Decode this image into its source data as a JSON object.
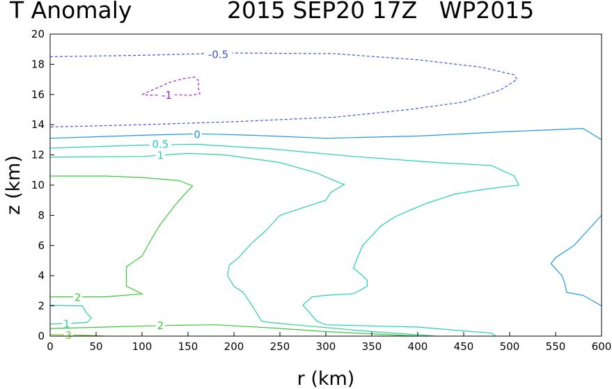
{
  "header": {
    "variable": "T Anomaly",
    "timestamp": "2015 SEP20 17Z",
    "storm": "WP2015"
  },
  "chart_data": {
    "type": "contour",
    "title": "T Anomaly",
    "subtitle": "2015 SEP20 17Z   WP2015",
    "xlabel": "r (km)",
    "ylabel": "z (km)",
    "xlim": [
      0,
      600
    ],
    "ylim": [
      0,
      20
    ],
    "xticks": [
      0,
      50,
      100,
      150,
      200,
      250,
      300,
      350,
      400,
      450,
      500,
      550,
      600
    ],
    "yticks": [
      0,
      2,
      4,
      6,
      8,
      10,
      12,
      14,
      16,
      18,
      20
    ],
    "grid": false,
    "contours": [
      {
        "name": "contour -0.5",
        "level": -0.5,
        "label": "-0.5",
        "color": "#3c50e6",
        "dashed": true,
        "label_at": [
          183,
          18.65
        ],
        "points": [
          [
            0,
            18.5
          ],
          [
            100,
            18.6
          ],
          [
            200,
            18.75
          ],
          [
            310,
            18.7
          ],
          [
            400,
            18.3
          ],
          [
            470,
            17.8
          ],
          [
            505,
            17.3
          ],
          [
            508,
            17.0
          ],
          [
            490,
            16.3
          ],
          [
            450,
            15.5
          ],
          [
            390,
            15.0
          ],
          [
            310,
            14.5
          ],
          [
            200,
            14.2
          ],
          [
            100,
            14.0
          ],
          [
            0,
            13.85
          ]
        ]
      },
      {
        "name": "contour -1",
        "level": -1,
        "label": "-1",
        "color": "#a01ec8",
        "dashed": true,
        "label_at": [
          127,
          15.95
        ],
        "points": [
          [
            100,
            16.0
          ],
          [
            115,
            16.4
          ],
          [
            130,
            16.8
          ],
          [
            145,
            17.05
          ],
          [
            157,
            17.15
          ],
          [
            162,
            16.9
          ],
          [
            161,
            16.5
          ],
          [
            163,
            16.05
          ],
          [
            153,
            15.95
          ],
          [
            130,
            16.0
          ],
          [
            110,
            15.95
          ],
          [
            100,
            16.0
          ]
        ]
      },
      {
        "name": "contour 0",
        "level": 0,
        "label": "0",
        "color": "#1e96e6",
        "dashed": false,
        "label_at": [
          160,
          13.35
        ],
        "points": [
          [
            0,
            13.1
          ],
          [
            100,
            13.3
          ],
          [
            160,
            13.4
          ],
          [
            220,
            13.3
          ],
          [
            300,
            13.1
          ],
          [
            400,
            13.25
          ],
          [
            500,
            13.55
          ],
          [
            580,
            13.75
          ],
          [
            600,
            13.0
          ]
        ]
      },
      {
        "name": "contour 0 outer",
        "level": 0,
        "label": "",
        "color": "#1e96e6",
        "dashed": false,
        "points": [
          [
            600,
            8.0
          ],
          [
            585,
            7.0
          ],
          [
            570,
            6.0
          ],
          [
            550,
            5.2
          ],
          [
            545,
            4.8
          ],
          [
            557,
            4.0
          ],
          [
            560,
            3.5
          ],
          [
            562,
            2.9
          ],
          [
            580,
            2.7
          ],
          [
            600,
            2.0
          ]
        ]
      },
      {
        "name": "contour 0.5",
        "level": 0.5,
        "label": "0.5",
        "color": "#1ed2b4",
        "dashed": false,
        "label_at": [
          120,
          12.7
        ],
        "points": [
          [
            0,
            12.45
          ],
          [
            100,
            12.65
          ],
          [
            160,
            12.7
          ],
          [
            240,
            12.4
          ],
          [
            330,
            11.9
          ],
          [
            420,
            11.5
          ],
          [
            480,
            11.3
          ],
          [
            505,
            10.6
          ],
          [
            510,
            10.0
          ],
          [
            495,
            9.9
          ],
          [
            470,
            9.7
          ],
          [
            440,
            9.4
          ],
          [
            410,
            8.8
          ],
          [
            390,
            8.3
          ],
          [
            375,
            7.9
          ],
          [
            360,
            7.3
          ],
          [
            340,
            6.0
          ],
          [
            333,
            5.0
          ],
          [
            330,
            4.5
          ],
          [
            340,
            4.0
          ],
          [
            345,
            3.7
          ],
          [
            345,
            3.3
          ],
          [
            330,
            2.8
          ],
          [
            300,
            2.7
          ],
          [
            285,
            2.6
          ],
          [
            275,
            2.05
          ],
          [
            283,
            1.5
          ],
          [
            290,
            1.0
          ],
          [
            300,
            0.75
          ],
          [
            400,
            0.6
          ],
          [
            480,
            0.2
          ],
          [
            485,
            0.0
          ]
        ]
      },
      {
        "name": "contour 1",
        "level": 1,
        "label": "1",
        "color": "#28d296",
        "dashed": false,
        "label_at": [
          120,
          11.95
        ],
        "points": [
          [
            0,
            11.85
          ],
          [
            100,
            11.9
          ],
          [
            150,
            12.1
          ],
          [
            190,
            12.0
          ],
          [
            250,
            11.5
          ],
          [
            290,
            10.8
          ],
          [
            315,
            10.15
          ],
          [
            320,
            10.05
          ],
          [
            305,
            9.5
          ],
          [
            300,
            9.0
          ],
          [
            275,
            8.5
          ],
          [
            250,
            8.0
          ],
          [
            235,
            7.0
          ],
          [
            220,
            6.2
          ],
          [
            205,
            5.2
          ],
          [
            195,
            4.7
          ],
          [
            193,
            4.0
          ],
          [
            200,
            3.3
          ],
          [
            210,
            2.9
          ],
          [
            220,
            2.0
          ],
          [
            230,
            1.0
          ],
          [
            240,
            0.9
          ],
          [
            275,
            0.7
          ],
          [
            350,
            0.3
          ],
          [
            420,
            0.0
          ]
        ]
      },
      {
        "name": "contour 1 core",
        "level": 1,
        "label": "1",
        "color": "#28d296",
        "dashed": false,
        "label_at": [
          18,
          0.8
        ],
        "points": [
          [
            0,
            2.05
          ],
          [
            35,
            2.0
          ],
          [
            40,
            1.5
          ],
          [
            45,
            1.2
          ],
          [
            40,
            0.9
          ],
          [
            0,
            0.8
          ]
        ]
      },
      {
        "name": "contour 2",
        "level": 2,
        "label": "2",
        "color": "#3cc83c",
        "dashed": false,
        "label_at": [
          30,
          2.55
        ],
        "points": [
          [
            0,
            10.6
          ],
          [
            60,
            10.6
          ],
          [
            100,
            10.5
          ],
          [
            140,
            10.3
          ],
          [
            155,
            9.95
          ],
          [
            145,
            9.3
          ],
          [
            135,
            8.6
          ],
          [
            120,
            7.4
          ],
          [
            110,
            6.4
          ],
          [
            100,
            5.3
          ],
          [
            83,
            4.6
          ],
          [
            83,
            3.3
          ],
          [
            90,
            3.1
          ],
          [
            100,
            2.8
          ],
          [
            60,
            2.6
          ],
          [
            0,
            2.6
          ]
        ]
      },
      {
        "name": "contour 2 lower",
        "level": 2,
        "label": "2",
        "color": "#3cc83c",
        "dashed": false,
        "label_at": [
          120,
          0.7
        ],
        "points": [
          [
            0,
            0.5
          ],
          [
            60,
            0.6
          ],
          [
            120,
            0.7
          ],
          [
            180,
            0.75
          ],
          [
            240,
            0.55
          ],
          [
            300,
            0.3
          ],
          [
            400,
            0.0
          ]
        ]
      },
      {
        "name": "contour 3",
        "level": 3,
        "label": "3",
        "color": "#78c828",
        "dashed": false,
        "label_at": [
          20,
          0.05
        ],
        "points": [
          [
            0,
            0.1
          ],
          [
            40,
            0.05
          ],
          [
            60,
            0.0
          ]
        ]
      }
    ]
  }
}
